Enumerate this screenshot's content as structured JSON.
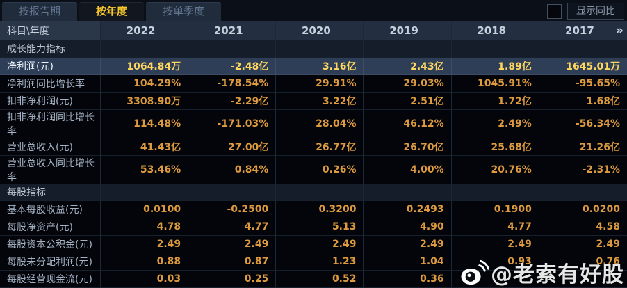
{
  "tabs": [
    {
      "label": "按报告期",
      "active": false
    },
    {
      "label": "按年度",
      "active": true
    },
    {
      "label": "按单季度",
      "active": false
    }
  ],
  "toolbar": {
    "show_yoy_label": "显示同比",
    "checkbox_checked": false
  },
  "table": {
    "corner_label": "科目\\年度",
    "years": [
      "2022",
      "2021",
      "2020",
      "2019",
      "2018",
      "2017"
    ],
    "more_icon": "»",
    "rows": [
      {
        "type": "section",
        "label": "成长能力指标"
      },
      {
        "type": "data",
        "highlight": true,
        "label": "净利润(元)",
        "values": [
          "1064.84万",
          "-2.48亿",
          "3.16亿",
          "2.43亿",
          "1.89亿",
          "1645.01万"
        ]
      },
      {
        "type": "data",
        "label": "净利润同比增长率",
        "values": [
          "104.29%",
          "-178.54%",
          "29.91%",
          "29.03%",
          "1045.91%",
          "-95.65%"
        ]
      },
      {
        "type": "data",
        "label": "扣非净利润(元)",
        "values": [
          "3308.90万",
          "-2.29亿",
          "3.22亿",
          "2.51亿",
          "1.72亿",
          "1.68亿"
        ]
      },
      {
        "type": "data",
        "label": "扣非净利润同比增长率",
        "values": [
          "114.48%",
          "-171.03%",
          "28.04%",
          "46.12%",
          "2.49%",
          "-56.34%"
        ]
      },
      {
        "type": "data",
        "label": "营业总收入(元)",
        "values": [
          "41.43亿",
          "27.00亿",
          "26.77亿",
          "26.70亿",
          "25.68亿",
          "21.26亿"
        ]
      },
      {
        "type": "data",
        "label": "营业总收入同比增长率",
        "values": [
          "53.46%",
          "0.84%",
          "0.26%",
          "4.00%",
          "20.76%",
          "-2.31%"
        ]
      },
      {
        "type": "section",
        "label": "每股指标"
      },
      {
        "type": "data",
        "label": "基本每股收益(元)",
        "values": [
          "0.0100",
          "-0.2500",
          "0.3200",
          "0.2493",
          "0.1900",
          "0.0200"
        ]
      },
      {
        "type": "data",
        "label": "每股净资产(元)",
        "values": [
          "4.78",
          "4.77",
          "5.13",
          "4.90",
          "4.77",
          "4.58"
        ]
      },
      {
        "type": "data",
        "label": "每股资本公积金(元)",
        "values": [
          "2.49",
          "2.49",
          "2.49",
          "2.49",
          "2.49",
          "2.49"
        ]
      },
      {
        "type": "data",
        "label": "每股未分配利润(元)",
        "values": [
          "0.88",
          "0.87",
          "1.23",
          "1.04",
          "0.93",
          "0.76"
        ]
      },
      {
        "type": "data",
        "label": "每股经营现金流(元)",
        "values": [
          "0.03",
          "0.25",
          "0.52",
          "0.36",
          "",
          ""
        ]
      }
    ]
  },
  "watermark": {
    "text": "@老索有好股",
    "icon": "weibo-logo"
  },
  "colors": {
    "tab_active_text": "#f6c62b",
    "value_text": "#dd9a3f",
    "highlight_value_text": "#ffd75e",
    "highlight_row_bg": "#2e3e57",
    "header_bg": "#232f41"
  }
}
